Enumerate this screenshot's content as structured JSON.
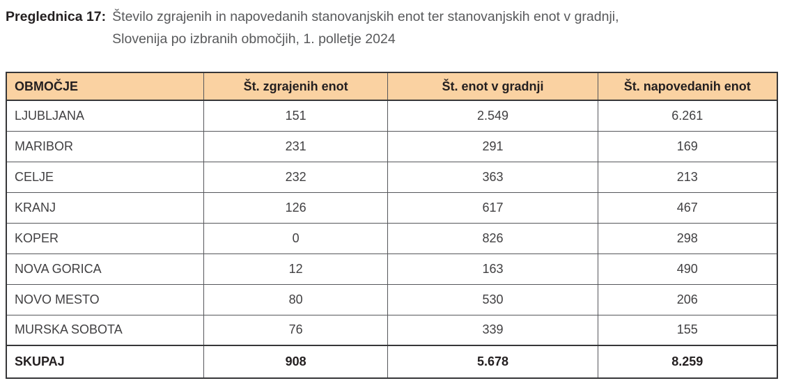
{
  "caption": {
    "label": "Preglednica 17:",
    "line1": "Število zgrajenih in napovedanih stanovanjskih enot ter stanovanjskih enot v gradnji,",
    "line2": "Slovenija po izbranih območjih, 1. polletje 2024"
  },
  "colors": {
    "header_bg": "#FAD2A2",
    "outer_border": "#363638",
    "inner_border": "#55565A",
    "caption_label": "#231F20",
    "caption_text": "#58595B",
    "cell_text": "#414042"
  },
  "table": {
    "headers": [
      "OBMOČJE",
      "Št. zgrajenih enot",
      "Št. enot v gradnji",
      "Št. napovedanih enot"
    ],
    "rows": [
      [
        "LJUBLJANA",
        "151",
        "2.549",
        "6.261"
      ],
      [
        "MARIBOR",
        "231",
        "291",
        "169"
      ],
      [
        "CELJE",
        "232",
        "363",
        "213"
      ],
      [
        "KRANJ",
        "126",
        "617",
        "467"
      ],
      [
        "KOPER",
        "0",
        "826",
        "298"
      ],
      [
        "NOVA GORICA",
        "12",
        "163",
        "490"
      ],
      [
        "NOVO MESTO",
        "80",
        "530",
        "206"
      ],
      [
        "MURSKA SOBOTA",
        "76",
        "339",
        "155"
      ]
    ],
    "total": [
      "SKUPAJ",
      "908",
      "5.678",
      "8.259"
    ]
  }
}
